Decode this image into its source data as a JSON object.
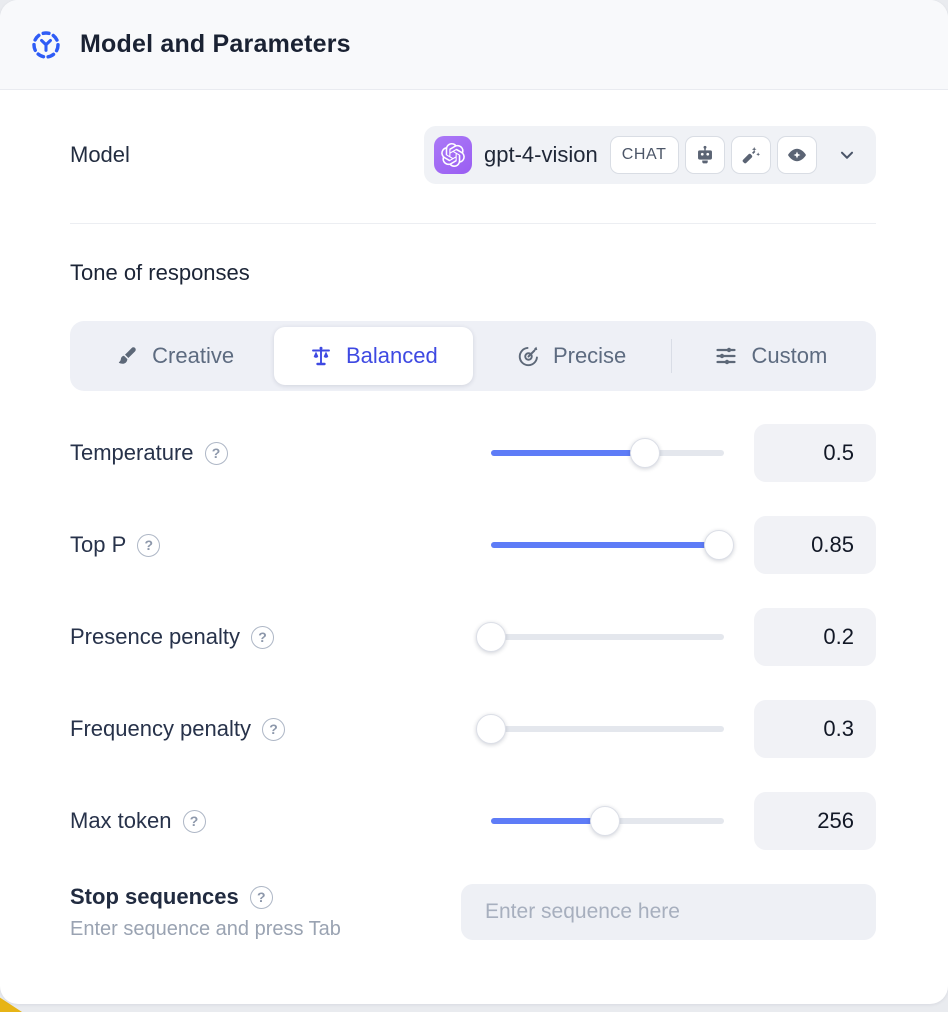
{
  "header": {
    "title": "Model and Parameters"
  },
  "model_row": {
    "label": "Model",
    "selected_model": "gpt-4-vision",
    "type_badge": "CHAT",
    "capability_icons": [
      "robot",
      "magic-wand",
      "vision-eye"
    ],
    "provider_icon": "openai-logo"
  },
  "tone": {
    "heading": "Tone of responses",
    "options": [
      {
        "label": "Creative",
        "icon": "paintbrush",
        "selected": false
      },
      {
        "label": "Balanced",
        "icon": "balance-scale",
        "selected": true
      },
      {
        "label": "Precise",
        "icon": "target",
        "selected": false
      },
      {
        "label": "Custom",
        "icon": "sliders",
        "selected": false
      }
    ]
  },
  "parameters": [
    {
      "label": "Temperature",
      "value": "0.5",
      "fill_percent": 66
    },
    {
      "label": "Top P",
      "value": "0.85",
      "fill_percent": 98
    },
    {
      "label": "Presence penalty",
      "value": "0.2",
      "fill_percent": 0
    },
    {
      "label": "Frequency penalty",
      "value": "0.3",
      "fill_percent": 0
    },
    {
      "label": "Max token",
      "value": "256",
      "fill_percent": 49
    }
  ],
  "stop_sequences": {
    "label": "Stop sequences",
    "helper": "Enter sequence and press Tab",
    "placeholder": "Enter sequence here"
  },
  "colors": {
    "accent_blue": "#2f5cf6",
    "selected_indigo": "#3e49e2",
    "slider_blue": "#5e7cf7",
    "provider_purple": "#9a5ef2",
    "card_bg": "#ffffff",
    "header_bg": "#f8f9fb"
  }
}
